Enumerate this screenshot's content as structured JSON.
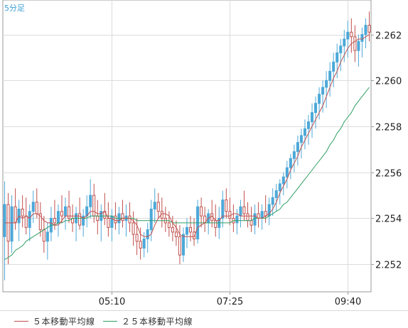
{
  "timeframe_label": "5分足",
  "chart_data": {
    "type": "candlestick",
    "ylim": [
      2.2508,
      2.2635
    ],
    "yticks": [
      "2.262",
      "2.260",
      "2.258",
      "2.256",
      "2.254",
      "2.252"
    ],
    "ytick_values": [
      2.262,
      2.26,
      2.258,
      2.256,
      2.254,
      2.252
    ],
    "xticks": [
      "05:10",
      "07:25",
      "09:40"
    ],
    "xtick_bar_index": [
      30,
      63,
      96
    ],
    "grid": true,
    "colors": {
      "up": "#4ca8d8",
      "down": "#c0504d",
      "ma5": "#c0504d",
      "ma25": "#2e9e62",
      "grid": "#dcdcdc",
      "axis": "#999999"
    },
    "ohlc": [
      [
        2.2532,
        2.2556,
        2.2513,
        2.2546
      ],
      [
        2.2546,
        2.2551,
        2.252,
        2.253
      ],
      [
        2.253,
        2.255,
        2.2525,
        2.2545
      ],
      [
        2.2545,
        2.2553,
        2.2535,
        2.2538
      ],
      [
        2.2538,
        2.2548,
        2.253,
        2.2544
      ],
      [
        2.2544,
        2.255,
        2.2536,
        2.2541
      ],
      [
        2.2541,
        2.2549,
        2.2533,
        2.2536
      ],
      [
        2.2536,
        2.2546,
        2.253,
        2.2543
      ],
      [
        2.2543,
        2.2552,
        2.2538,
        2.2547
      ],
      [
        2.2547,
        2.2553,
        2.254,
        2.2542
      ],
      [
        2.2542,
        2.2547,
        2.2532,
        2.2535
      ],
      [
        2.2535,
        2.2541,
        2.2525,
        2.253
      ],
      [
        2.253,
        2.2538,
        2.2522,
        2.2534
      ],
      [
        2.2534,
        2.2545,
        2.253,
        2.254
      ],
      [
        2.254,
        2.2548,
        2.2535,
        2.2538
      ],
      [
        2.2538,
        2.2546,
        2.2532,
        2.2543
      ],
      [
        2.2543,
        2.255,
        2.2538,
        2.2541
      ],
      [
        2.2541,
        2.2549,
        2.2535,
        2.2545
      ],
      [
        2.2545,
        2.2552,
        2.2538,
        2.254
      ],
      [
        2.254,
        2.2546,
        2.2534,
        2.2538
      ],
      [
        2.2538,
        2.2545,
        2.253,
        2.2542
      ],
      [
        2.2542,
        2.2549,
        2.2535,
        2.2537
      ],
      [
        2.2537,
        2.2544,
        2.2532,
        2.2541
      ],
      [
        2.2541,
        2.255,
        2.2536,
        2.2545
      ],
      [
        2.2545,
        2.2557,
        2.254,
        2.255
      ],
      [
        2.255,
        2.2555,
        2.2538,
        2.2541
      ],
      [
        2.2541,
        2.2548,
        2.2533,
        2.2539
      ],
      [
        2.2539,
        2.2546,
        2.253,
        2.2543
      ],
      [
        2.2543,
        2.2551,
        2.2537,
        2.254
      ],
      [
        2.254,
        2.2547,
        2.2532,
        2.2536
      ],
      [
        2.2536,
        2.2544,
        2.253,
        2.2541
      ],
      [
        2.2541,
        2.2547,
        2.2535,
        2.2538
      ],
      [
        2.2538,
        2.2545,
        2.2533,
        2.2542
      ],
      [
        2.2542,
        2.2548,
        2.2536,
        2.2539
      ],
      [
        2.2539,
        2.2546,
        2.2532,
        2.2541
      ],
      [
        2.2541,
        2.2547,
        2.2534,
        2.2538
      ],
      [
        2.2538,
        2.2543,
        2.2528,
        2.2533
      ],
      [
        2.2533,
        2.254,
        2.2524,
        2.253
      ],
      [
        2.253,
        2.2536,
        2.2522,
        2.2527
      ],
      [
        2.2527,
        2.2534,
        2.2523,
        2.2531
      ],
      [
        2.2531,
        2.2538,
        2.2525,
        2.2535
      ],
      [
        2.2535,
        2.2548,
        2.253,
        2.2544
      ],
      [
        2.2544,
        2.2553,
        2.2538,
        2.2547
      ],
      [
        2.2547,
        2.2551,
        2.254,
        2.2543
      ],
      [
        2.2543,
        2.2549,
        2.2536,
        2.254
      ],
      [
        2.254,
        2.2545,
        2.2534,
        2.2538
      ],
      [
        2.2538,
        2.2543,
        2.2532,
        2.2536
      ],
      [
        2.2536,
        2.2541,
        2.253,
        2.2534
      ],
      [
        2.2534,
        2.2539,
        2.2528,
        2.2532
      ],
      [
        2.2532,
        2.2537,
        2.252,
        2.2524
      ],
      [
        2.2524,
        2.2536,
        2.2521,
        2.2533
      ],
      [
        2.2533,
        2.254,
        2.2527,
        2.2536
      ],
      [
        2.2536,
        2.2541,
        2.253,
        2.2534
      ],
      [
        2.2534,
        2.254,
        2.2528,
        2.2531
      ],
      [
        2.2531,
        2.2548,
        2.2529,
        2.2545
      ],
      [
        2.2545,
        2.2549,
        2.2536,
        2.2541
      ],
      [
        2.2541,
        2.2545,
        2.2534,
        2.2538
      ],
      [
        2.2538,
        2.2544,
        2.2533,
        2.2542
      ],
      [
        2.2542,
        2.2548,
        2.2536,
        2.2539
      ],
      [
        2.2539,
        2.2546,
        2.2532,
        2.2536
      ],
      [
        2.2536,
        2.2545,
        2.2531,
        2.254
      ],
      [
        2.254,
        2.2552,
        2.2536,
        2.2548
      ],
      [
        2.2548,
        2.2553,
        2.254,
        2.2543
      ],
      [
        2.2543,
        2.2549,
        2.2537,
        2.254
      ],
      [
        2.254,
        2.2546,
        2.2534,
        2.2538
      ],
      [
        2.2538,
        2.2544,
        2.2533,
        2.2541
      ],
      [
        2.2541,
        2.2548,
        2.2536,
        2.2545
      ],
      [
        2.2545,
        2.2552,
        2.2539,
        2.2542
      ],
      [
        2.2542,
        2.2547,
        2.2536,
        2.2539
      ],
      [
        2.2539,
        2.2545,
        2.2534,
        2.2537
      ],
      [
        2.2537,
        2.2546,
        2.2533,
        2.2542
      ],
      [
        2.2542,
        2.2547,
        2.2536,
        2.254
      ],
      [
        2.254,
        2.2546,
        2.2535,
        2.2543
      ],
      [
        2.2543,
        2.255,
        2.2538,
        2.2541
      ],
      [
        2.2541,
        2.2549,
        2.2537,
        2.2546
      ],
      [
        2.2546,
        2.2553,
        2.2541,
        2.2549
      ],
      [
        2.2549,
        2.2555,
        2.2543,
        2.2552
      ],
      [
        2.2552,
        2.2557,
        2.2546,
        2.2555
      ],
      [
        2.2555,
        2.256,
        2.255,
        2.2558
      ],
      [
        2.2558,
        2.2565,
        2.2553,
        2.2562
      ],
      [
        2.2562,
        2.2568,
        2.2557,
        2.2566
      ],
      [
        2.2566,
        2.2572,
        2.256,
        2.2569
      ],
      [
        2.2569,
        2.2576,
        2.2563,
        2.2573
      ],
      [
        2.2573,
        2.2579,
        2.2566,
        2.2576
      ],
      [
        2.2576,
        2.2583,
        2.257,
        2.2579
      ],
      [
        2.2579,
        2.2585,
        2.2572,
        2.2582
      ],
      [
        2.2582,
        2.259,
        2.2575,
        2.2586
      ],
      [
        2.2586,
        2.2593,
        2.2579,
        2.259
      ],
      [
        2.259,
        2.2597,
        2.2583,
        2.2594
      ],
      [
        2.2594,
        2.26,
        2.2586,
        2.2597
      ],
      [
        2.2597,
        2.2604,
        2.2588,
        2.26
      ],
      [
        2.26,
        2.2608,
        2.2593,
        2.2604
      ],
      [
        2.2604,
        2.2612,
        2.2597,
        2.2608
      ],
      [
        2.2608,
        2.2616,
        2.2601,
        2.2612
      ],
      [
        2.2612,
        2.2618,
        2.2604,
        2.2615
      ],
      [
        2.2615,
        2.2622,
        2.2608,
        2.2618
      ],
      [
        2.2618,
        2.2626,
        2.261,
        2.2621
      ],
      [
        2.2621,
        2.2627,
        2.2612,
        2.2619
      ],
      [
        2.2619,
        2.2624,
        2.2608,
        2.2613
      ],
      [
        2.2613,
        2.262,
        2.2606,
        2.2617
      ],
      [
        2.2617,
        2.2623,
        2.261,
        2.262
      ],
      [
        2.262,
        2.2627,
        2.2614,
        2.2624
      ],
      [
        2.2624,
        2.263,
        2.2617,
        2.2621
      ]
    ],
    "ma5": [
      2.2538,
      2.2538,
      2.2538,
      2.2538,
      2.2541,
      2.254,
      2.2541,
      2.254,
      2.2542,
      2.2542,
      2.2541,
      2.2539,
      2.2538,
      2.2538,
      2.2537,
      2.2537,
      2.2539,
      2.2541,
      2.2541,
      2.2541,
      2.2541,
      2.2541,
      2.254,
      2.2541,
      2.2543,
      2.2543,
      2.2542,
      2.2542,
      2.2543,
      2.254,
      2.254,
      2.2539,
      2.2539,
      2.254,
      2.254,
      2.254,
      2.2539,
      2.2537,
      2.2533,
      2.2532,
      2.2532,
      2.2533,
      2.2537,
      2.254,
      2.2542,
      2.2542,
      2.2541,
      2.2538,
      2.2536,
      2.2533,
      2.2532,
      2.2532,
      2.2532,
      2.2532,
      2.2536,
      2.2537,
      2.2538,
      2.254,
      2.2541,
      2.2539,
      2.2539,
      2.2541,
      2.2541,
      2.2541,
      2.2542,
      2.2542,
      2.2541,
      2.2541,
      2.2541,
      2.2541,
      2.2541,
      2.254,
      2.254,
      2.2541,
      2.2542,
      2.2544,
      2.2547,
      2.2551,
      2.2554,
      2.2557,
      2.2561,
      2.2564,
      2.2567,
      2.2571,
      2.2574,
      2.2577,
      2.258,
      2.2583,
      2.2586,
      2.2589,
      2.2593,
      2.2597,
      2.2601,
      2.2604,
      2.2608,
      2.2611,
      2.2614,
      2.2616,
      2.2617,
      2.2618,
      2.2618,
      2.2619,
      2.262
    ],
    "ma25": [
      2.2522,
      2.2523,
      2.2524,
      2.2526,
      2.2527,
      2.2528,
      2.253,
      2.2531,
      2.2532,
      2.2533,
      2.2534,
      2.2535,
      2.2536,
      2.2537,
      2.2537,
      2.2538,
      2.2538,
      2.2539,
      2.2539,
      2.254,
      2.254,
      2.254,
      2.254,
      2.254,
      2.2541,
      2.2541,
      2.2541,
      2.2541,
      2.2541,
      2.2541,
      2.2541,
      2.254,
      2.254,
      2.254,
      2.254,
      2.254,
      2.254,
      2.2539,
      2.2539,
      2.2539,
      2.2539,
      2.2539,
      2.2539,
      2.2539,
      2.2539,
      2.2539,
      2.2539,
      2.2538,
      2.2538,
      2.2538,
      2.2538,
      2.2538,
      2.2538,
      2.2538,
      2.2538,
      2.2538,
      2.2538,
      2.2538,
      2.2538,
      2.2538,
      2.2538,
      2.2538,
      2.2538,
      2.2538,
      2.2539,
      2.2539,
      2.2539,
      2.2539,
      2.2539,
      2.2539,
      2.254,
      2.254,
      2.254,
      2.254,
      2.2541,
      2.2542,
      2.2543,
      2.2544,
      2.2546,
      2.2547,
      2.2549,
      2.2551,
      2.2553,
      2.2555,
      2.2557,
      2.2559,
      2.2561,
      2.2563,
      2.2565,
      2.2567,
      2.2569,
      2.2572,
      2.2574,
      2.2577,
      2.2579,
      2.2582,
      2.2584,
      2.2586,
      2.2589,
      2.2591,
      2.2593,
      2.2595,
      2.2597
    ]
  },
  "legend": [
    {
      "label": "５本移動平均線",
      "color": "#c0504d"
    },
    {
      "label": "２５本移動平均線",
      "color": "#2e9e62"
    }
  ]
}
